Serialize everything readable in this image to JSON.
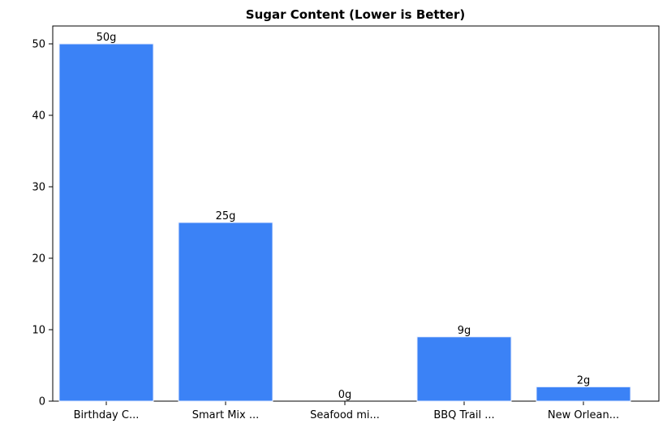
{
  "chart_data": {
    "type": "bar",
    "title": "Sugar Content (Lower is Better)",
    "categories": [
      "Birthday C...",
      "Smart Mix ...",
      "Seafood mi...",
      "BBQ Trail ...",
      "New Orlean..."
    ],
    "values": [
      50,
      25,
      0,
      9,
      2
    ],
    "value_labels": [
      "50g",
      "25g",
      "0g",
      "9g",
      "2g"
    ],
    "color": "#3b82f6",
    "ylim": [
      0,
      52.5
    ],
    "yticks": [
      0,
      10,
      20,
      30,
      40,
      50
    ],
    "grid": false
  }
}
